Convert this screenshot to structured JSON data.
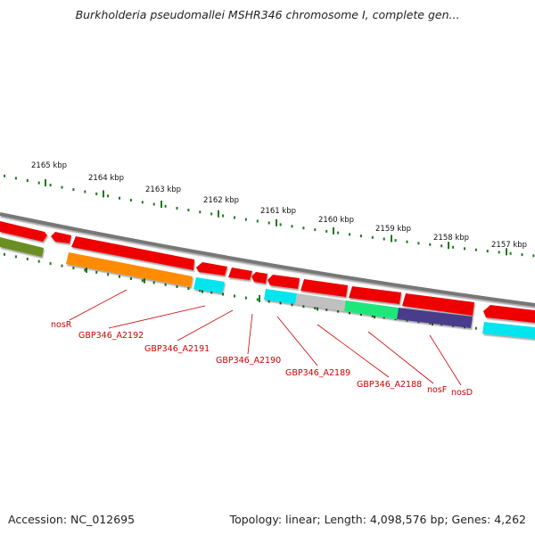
{
  "title": "Burkholderia pseudomallei MSHR346 chromosome I, complete gen...",
  "accession_text": "Accession: NC_012695",
  "summary_text": "Topology: linear; Length: 4,098,576 bp; Genes: 4,262",
  "colors": {
    "backbone": "#808080",
    "red": "#ee0000",
    "orange": "#ff8c00",
    "cyan": "#00e5ee",
    "olive": "#6b8e23",
    "gray": "#c0c0c0",
    "spring": "#1ee87a",
    "navy": "#483d8b",
    "tick": "#1a7a1a",
    "label": "#cc0000"
  },
  "kbp_ticks": [
    "2165 kbp",
    "2164 kbp",
    "2163 kbp",
    "2162 kbp",
    "2161 kbp",
    "2160 kbp",
    "2159 kbp",
    "2158 kbp",
    "2157 kbp"
  ],
  "gene_labels": [
    "nosR",
    "GBP346_A2192",
    "GBP346_A2191",
    "GBP346_A2190",
    "GBP346_A2189",
    "GBP346_A2188",
    "nosF",
    "nosD"
  ]
}
